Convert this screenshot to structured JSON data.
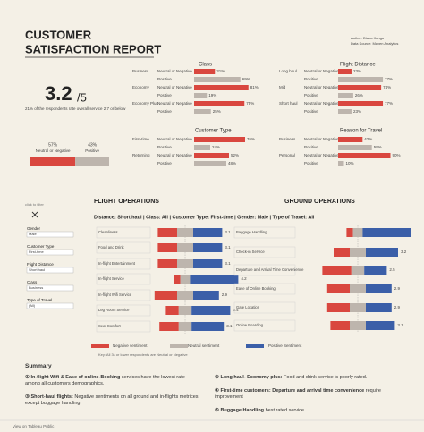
{
  "header": {
    "title_line1": "CUSTOMER",
    "title_line2": "SATISFACTION REPORT",
    "author": "Author: Diana Kungu",
    "source": "Data Source: Maven Analytics"
  },
  "kpi": {
    "score": "3.2",
    "out_of": "/5",
    "note": "21% of the respondents rate overall service 2.7 or below"
  },
  "filters": {
    "hint": "click to filter",
    "fields": [
      {
        "label": "Gender",
        "value": "Male"
      },
      {
        "label": "Customer Type",
        "value": "First-time"
      },
      {
        "label": "Flight Distance",
        "value": "Short haul"
      },
      {
        "label": "Class",
        "value": "Business"
      },
      {
        "label": "Type of Travel",
        "value": "(All)"
      }
    ]
  },
  "chart_data": [
    {
      "type": "stack",
      "series": [
        {
          "name": "Neutral or Negative",
          "color": "#d9473f",
          "values": [
            57
          ],
          "value_labels": [
            "57%"
          ]
        },
        {
          "name": "Positive",
          "color": "#bdb5ad",
          "values": [
            43
          ],
          "value_labels": [
            "43%"
          ]
        }
      ],
      "xlim": [
        0,
        100
      ]
    },
    {
      "type": "pairs",
      "title": "Class",
      "categories": [
        "Business",
        "Economy",
        "Economy Plus"
      ],
      "series": [
        {
          "name": "Neutral or Negative",
          "color": "#d9473f",
          "values": [
            31,
            81,
            75
          ],
          "value_labels": [
            "31%",
            "81%",
            "75%"
          ]
        },
        {
          "name": "Positive",
          "color": "#bdb5ad",
          "values": [
            69,
            19,
            25
          ],
          "value_labels": [
            "69%",
            "19%",
            "25%"
          ]
        }
      ],
      "xlim": [
        0,
        100
      ]
    },
    {
      "type": "pairs",
      "title": "Flight Distance",
      "categories": [
        "Long haul",
        "Mid",
        "Short haul"
      ],
      "series": [
        {
          "name": "Neutral or Negative",
          "color": "#d9473f",
          "values": [
            23,
            74,
            77
          ],
          "value_labels": [
            "23%",
            "74%",
            "77%"
          ]
        },
        {
          "name": "Positive",
          "color": "#bdb5ad",
          "values": [
            77,
            26,
            23
          ],
          "value_labels": [
            "77%",
            "26%",
            "23%"
          ]
        }
      ],
      "xlim": [
        0,
        100
      ]
    },
    {
      "type": "pairs",
      "title": "Customer Type",
      "categories": [
        "First-time",
        "Returning"
      ],
      "series": [
        {
          "name": "Neutral or Negative",
          "color": "#d9473f",
          "values": [
            76,
            52
          ],
          "value_labels": [
            "76%",
            "52%"
          ]
        },
        {
          "name": "Positive",
          "color": "#bdb5ad",
          "values": [
            24,
            48
          ],
          "value_labels": [
            "24%",
            "48%"
          ]
        }
      ],
      "xlim": [
        0,
        100
      ]
    },
    {
      "type": "pairs",
      "title": "Reason for Travel",
      "categories": [
        "Business",
        "Personal"
      ],
      "series": [
        {
          "name": "Neutral or Negative",
          "color": "#d9473f",
          "values": [
            42,
            90
          ],
          "value_labels": [
            "42%",
            "90%"
          ]
        },
        {
          "name": "Positive",
          "color": "#bdb5ad",
          "values": [
            58,
            10
          ],
          "value_labels": [
            "58%",
            "10%"
          ]
        }
      ],
      "xlim": [
        0,
        100
      ]
    },
    {
      "type": "sentiment",
      "title": "FLIGHT OPERATIONS",
      "subtitle": "Distance: Short haul | Class: All | Customer Type: First-time | Gender: Male | Type of Travel: All",
      "categories": [
        "Cleanliness",
        "Food and Drink",
        "In-flight Entertainment",
        "In-flight Service",
        "In-flight Wifi Service",
        "Leg Room Service",
        "Seat Comfort"
      ],
      "scores": [
        3.1,
        3.1,
        3.1,
        4.2,
        2.9,
        3.4,
        3.1
      ],
      "series": [
        {
          "name": "Negative sentiment",
          "color": "#d9473f",
          "values": [
            30,
            30,
            30,
            10,
            35,
            20,
            30
          ]
        },
        {
          "name": "Neutral sentiment",
          "color": "#bdb5ad",
          "values": [
            25,
            25,
            25,
            15,
            25,
            20,
            20
          ]
        },
        {
          "name": "Positive Sentiment",
          "color": "#3b5fa8",
          "values": [
            45,
            45,
            45,
            75,
            40,
            60,
            50
          ]
        }
      ],
      "xlim": [
        0,
        100
      ]
    },
    {
      "type": "sentiment",
      "title": "GROUND OPERATIONS",
      "categories": [
        "Baggage Handling",
        "Check-in Service",
        "Departure and Arrival Time Convenience",
        "Ease of Online Booking",
        "Gate Location",
        "Online Boarding"
      ],
      "scores": [
        null,
        3.2,
        2.5,
        2.9,
        2.9,
        3.1
      ],
      "series": [
        {
          "color": "#d9473f",
          "values": [
            10,
            25,
            45,
            35,
            35,
            30
          ]
        },
        {
          "color": "#bdb5ad",
          "values": [
            15,
            25,
            20,
            25,
            25,
            25
          ]
        },
        {
          "color": "#3b5fa8",
          "values": [
            75,
            50,
            35,
            40,
            40,
            45
          ]
        }
      ],
      "xlim": [
        0,
        100
      ]
    }
  ],
  "legend_key": "Key: All 3s or lower respondents are Neutral or Negative",
  "summary": {
    "title": "Summary",
    "items": [
      {
        "lead": "① In-flight Wifi & Ease of online-Booking",
        "text": " services have the lowest rate among all customers demographics."
      },
      {
        "lead": "② Long haul- Economy plus:",
        "text": " Food and drink service is poorly rated."
      },
      {
        "lead": "③ Short-haul flights:",
        "text": " Negative sentiments on all ground and in-flights metrices except buggage handling."
      },
      {
        "lead": "④ First-time customers: Departure and arrival time convenience",
        "text": " require improvement"
      },
      {
        "lead": "⑤ Buggage Handling",
        "text": " best rated service"
      }
    ]
  },
  "footer": "View on Tableau Public"
}
